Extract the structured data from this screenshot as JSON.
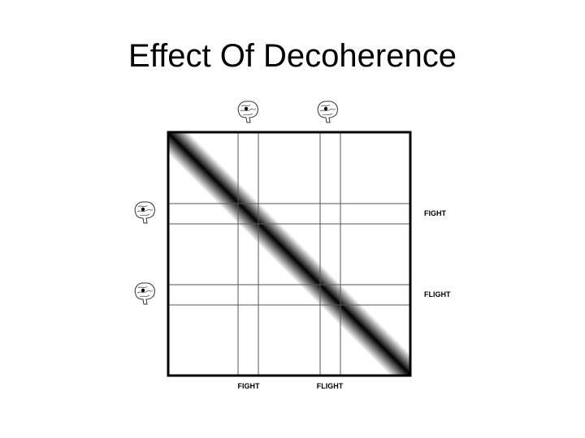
{
  "header": {
    "title": "Effect Of Decoherence"
  },
  "diagram": {
    "column_labels": [
      "FIGHT",
      "FLIGHT"
    ],
    "row_labels": [
      "FIGHT",
      "FLIGHT"
    ]
  }
}
